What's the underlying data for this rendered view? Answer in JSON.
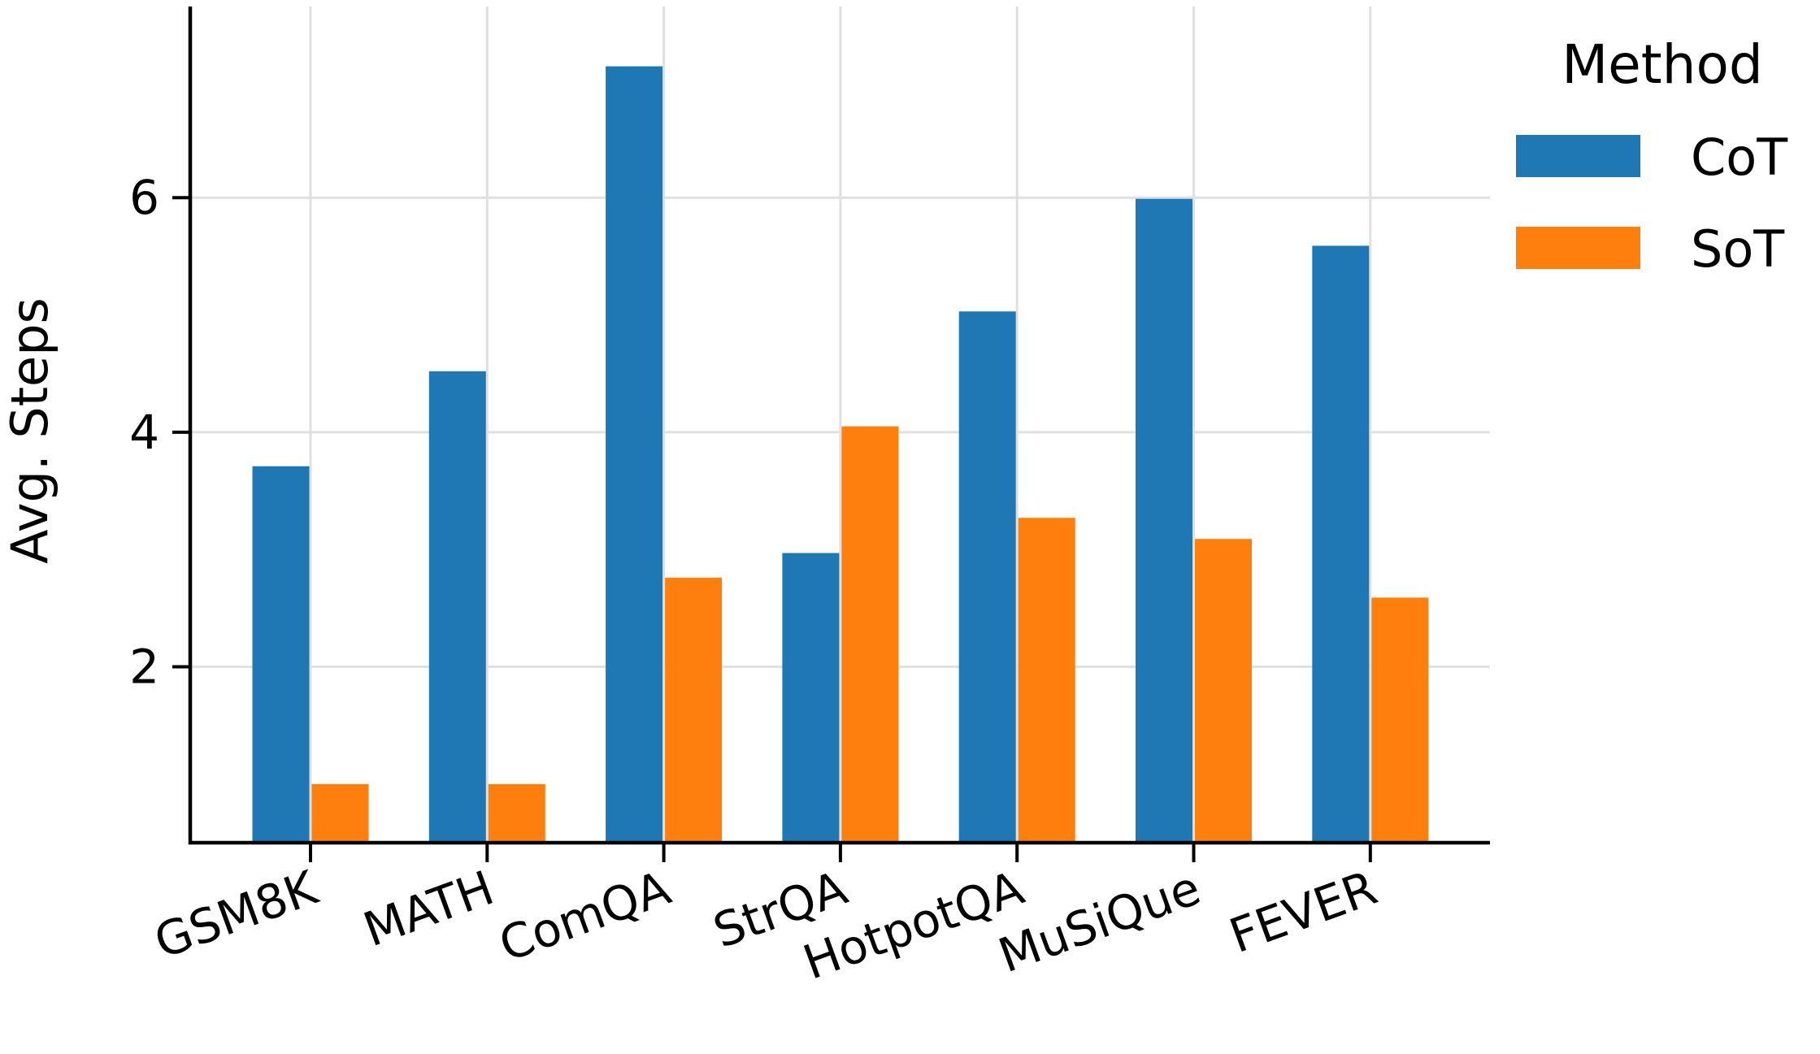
{
  "chart_data": {
    "type": "bar",
    "title": "",
    "xlabel": "",
    "ylabel": "Avg. Steps",
    "categories": [
      "GSM8K",
      "MATH",
      "ComQA",
      "StrQA",
      "HotpotQA",
      "MuSiQue",
      "FEVER"
    ],
    "series": [
      {
        "name": "CoT",
        "color": "#1f77b4",
        "values": [
          3.71,
          4.52,
          7.12,
          2.97,
          5.03,
          5.99,
          5.59
        ]
      },
      {
        "name": "SoT",
        "color": "#ff7f0e",
        "values": [
          1.0,
          1.0,
          2.76,
          4.05,
          3.27,
          3.09,
          2.59
        ]
      }
    ],
    "ylim": [
      0.5,
      7.63
    ],
    "yticks": [
      "2",
      "4",
      "6"
    ],
    "grid": true,
    "legend": {
      "title": "Method",
      "placement": "upper right, outside plot"
    }
  }
}
